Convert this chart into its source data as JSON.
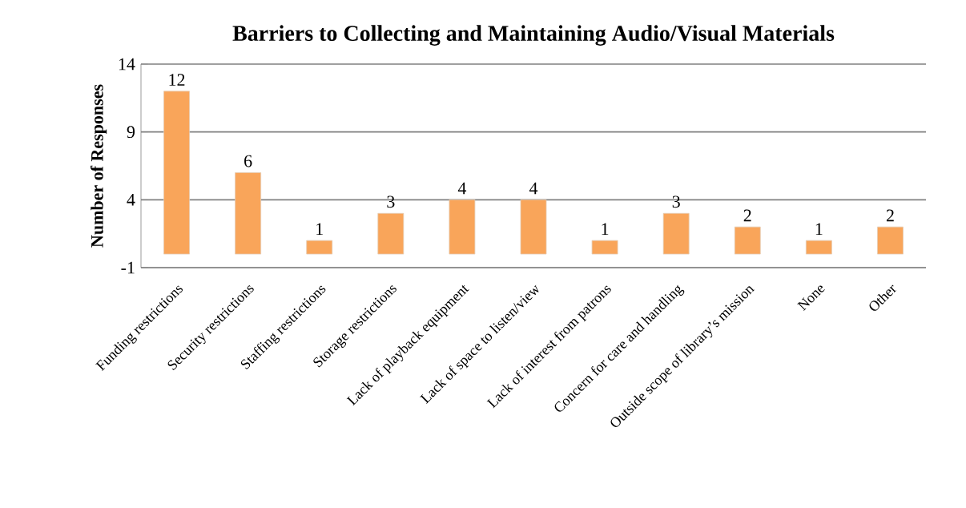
{
  "chart_data": {
    "type": "bar",
    "title": "Barriers to Collecting and Maintaining Audio/Visual Materials",
    "ylabel": "Number of Responses",
    "categories": [
      "Funding restrictions",
      "Security restrictions",
      "Staffing restrictions",
      "Storage restrictions",
      "Lack of playback equipment",
      "Lack of space to listen/view",
      "Lack of interest from patrons",
      "Concern for care and handling",
      "Outside scope of library’s mission",
      "None",
      "Other"
    ],
    "values": [
      12,
      6,
      1,
      3,
      4,
      4,
      1,
      3,
      2,
      1,
      2
    ],
    "color": "#f9a55a",
    "ylim": [
      -1,
      14
    ],
    "yticks": [
      -1,
      4,
      9,
      14
    ],
    "grid": "y",
    "data_labels": true
  }
}
